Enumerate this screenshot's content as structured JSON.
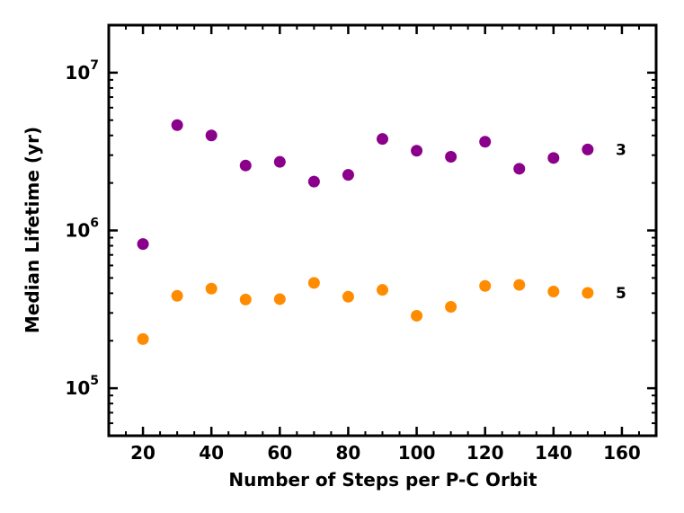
{
  "chart_data": {
    "type": "scatter",
    "title": "",
    "xlabel": "Number of Steps per P-C Orbit",
    "ylabel": "Median Lifetime (yr)",
    "xlim": [
      10,
      170
    ],
    "ylim": [
      50000,
      20000000
    ],
    "yscale": "log",
    "grid": false,
    "x_ticks": [
      20,
      40,
      60,
      80,
      100,
      120,
      140,
      160
    ],
    "x_tick_labels": [
      "20",
      "40",
      "60",
      "80",
      "100",
      "120",
      "140",
      "160"
    ],
    "y_ticks": [
      {
        "value": 100000,
        "base": "10",
        "exp": "5"
      },
      {
        "value": 1000000,
        "base": "10",
        "exp": "6"
      },
      {
        "value": 10000000,
        "base": "10",
        "exp": "7"
      }
    ],
    "x": [
      20,
      30,
      40,
      50,
      60,
      70,
      80,
      90,
      100,
      110,
      120,
      130,
      140,
      150
    ],
    "series": [
      {
        "name": "3",
        "label": "3",
        "color": "#8b008b",
        "values": [
          820000,
          4650000,
          4000000,
          2580000,
          2720000,
          2040000,
          2250000,
          3800000,
          3200000,
          2930000,
          3650000,
          2460000,
          2880000,
          3260000
        ]
      },
      {
        "name": "5",
        "label": "5",
        "color": "#ff8c00",
        "values": [
          205000,
          385000,
          428000,
          365000,
          367000,
          465000,
          380000,
          420000,
          288000,
          328000,
          445000,
          452000,
          410000,
          402000
        ]
      }
    ]
  }
}
